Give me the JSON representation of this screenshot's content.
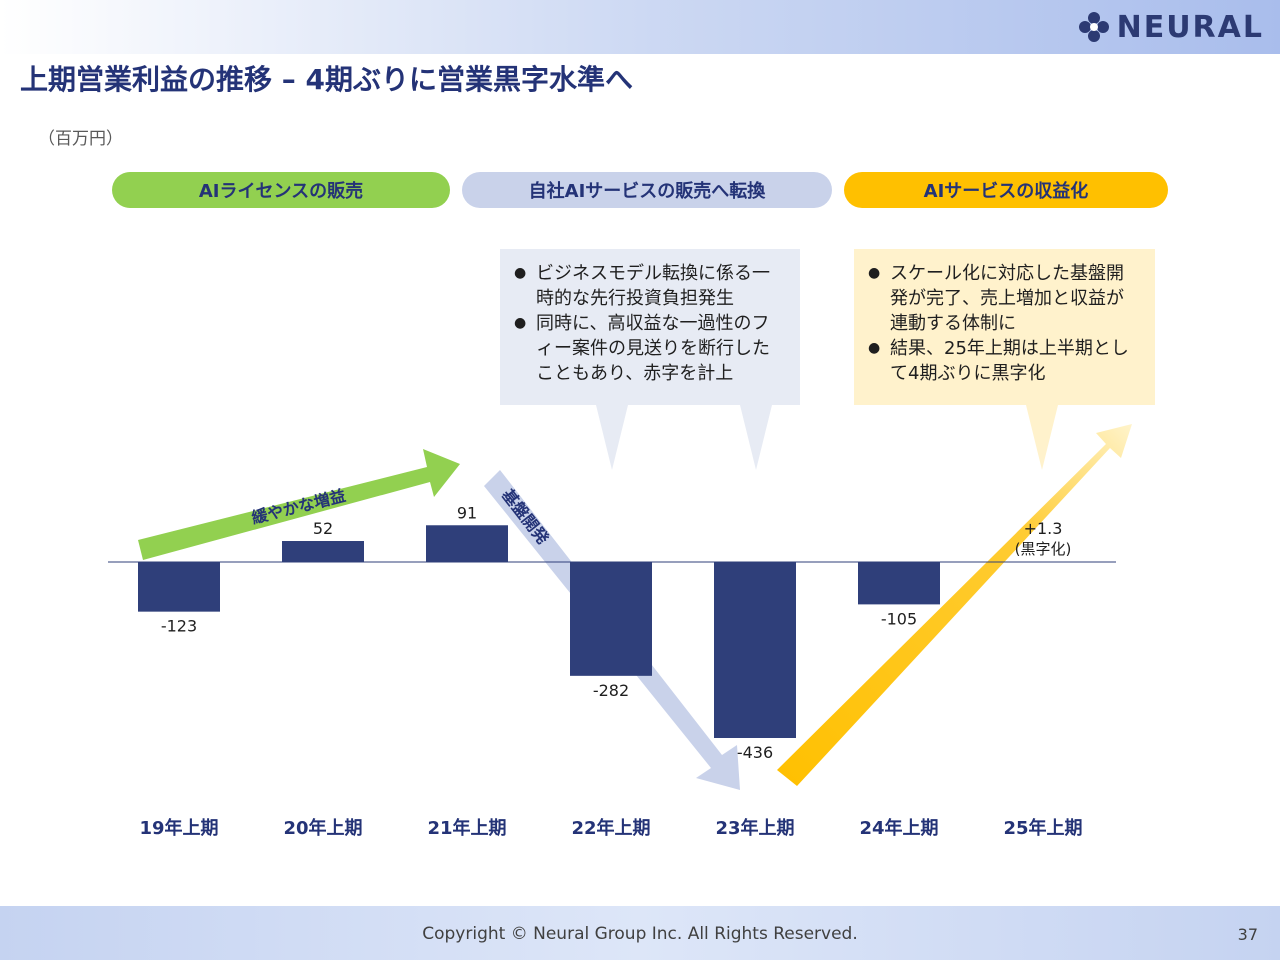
{
  "header": {
    "title": "上期営業利益の推移 – 4期ぶりに営業黒字水準へ",
    "logo_text": "NEURAL"
  },
  "unit": "（百万円）",
  "phases": [
    {
      "label": "AIライセンスの販売",
      "color": "#92d050"
    },
    {
      "label": "自社AIサービスの販売へ転換",
      "color": "#c9d2ea"
    },
    {
      "label": "AIサービスの収益化",
      "color": "#ffc000"
    }
  ],
  "callouts": [
    {
      "items": [
        "ビジネスモデル転換に係る一時的な先行投資負担発生",
        "同時に、高収益な一過性のフィー案件の見送りを断行したこともあり、赤字を計上"
      ],
      "color": "#e7ebf4"
    },
    {
      "items": [
        "スケール化に対応した基盤開発が完了、売上増加と収益が連動する体制に",
        "結果、25年上期は上半期として4期ぶりに黒字化"
      ],
      "color": "#fff2cc"
    }
  ],
  "trend_labels": {
    "growth": "緩やかな増益",
    "development": "基盤開発"
  },
  "chart_data": {
    "type": "bar",
    "categories": [
      "19年上期",
      "20年上期",
      "21年上期",
      "22年上期",
      "23年上期",
      "24年上期",
      "25年上期"
    ],
    "values": [
      -123,
      52,
      91,
      -282,
      -436,
      -105,
      1.3
    ],
    "data_labels": [
      "-123",
      "52",
      "91",
      "-282",
      "-436",
      "-105",
      "+1.3"
    ],
    "annotation_25": "(黒字化)",
    "ylabel": "（百万円）",
    "bar_color": "#2f3f7a",
    "grid": false
  },
  "footer": {
    "copyright": "Copyright © Neural Group Inc. All Rights Reserved.",
    "page_number": "37"
  }
}
